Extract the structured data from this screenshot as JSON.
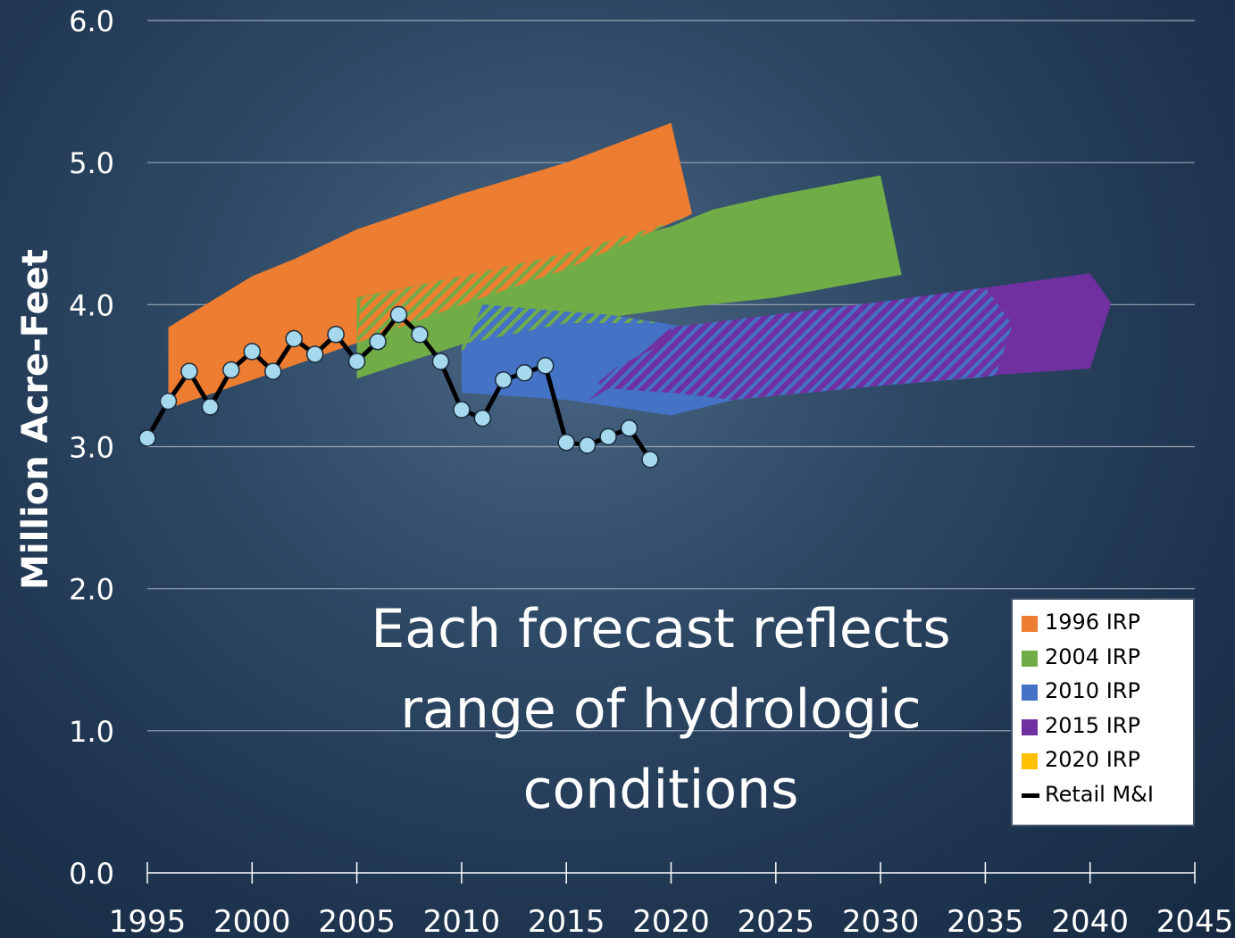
{
  "chart_data": {
    "type": "area",
    "ylabel": "Million Acre-Feet",
    "xlim": [
      1995,
      2045
    ],
    "ylim": [
      0.0,
      6.0
    ],
    "x_ticks": [
      "1995",
      "2000",
      "2005",
      "2010",
      "2015",
      "2020",
      "2025",
      "2030",
      "2035",
      "2040",
      "2045"
    ],
    "y_ticks": [
      "0.0",
      "1.0",
      "2.0",
      "3.0",
      "4.0",
      "5.0",
      "6.0"
    ],
    "grid": true,
    "annotation": "Each forecast reflects range of hydrologic conditions",
    "legend_position": "bottom-right",
    "bands": [
      {
        "name": "1996 IRP",
        "color": "#ed7d31",
        "upper": [
          [
            1996,
            3.84
          ],
          [
            2000,
            4.2
          ],
          [
            2002,
            4.32
          ],
          [
            2005,
            4.53
          ],
          [
            2010,
            4.78
          ],
          [
            2015,
            5.0
          ],
          [
            2020,
            5.28
          ],
          [
            2021,
            4.64
          ]
        ],
        "lower": [
          [
            1996,
            3.27
          ],
          [
            2000,
            3.47
          ],
          [
            2005,
            3.73
          ],
          [
            2010,
            4.0
          ],
          [
            2015,
            4.25
          ],
          [
            2021,
            4.64
          ]
        ]
      },
      {
        "name": "2004 IRP",
        "color": "#70ad47",
        "upper": [
          [
            2005,
            4.05
          ],
          [
            2010,
            4.2
          ],
          [
            2015,
            4.36
          ],
          [
            2020,
            4.55
          ],
          [
            2022,
            4.67
          ],
          [
            2025,
            4.77
          ],
          [
            2030,
            4.91
          ],
          [
            2031,
            4.21
          ]
        ],
        "lower": [
          [
            2005,
            3.48
          ],
          [
            2010,
            3.72
          ],
          [
            2015,
            3.87
          ],
          [
            2020,
            3.97
          ],
          [
            2025,
            4.05
          ],
          [
            2031,
            4.21
          ]
        ]
      },
      {
        "name": "2010 IRP",
        "color": "#4472c4",
        "upper": [
          [
            2010,
            3.63
          ],
          [
            2011,
            4.0
          ],
          [
            2015,
            3.95
          ],
          [
            2017,
            3.93
          ],
          [
            2020,
            3.86
          ]
        ],
        "lower": [
          [
            2010,
            3.38
          ],
          [
            2015,
            3.33
          ],
          [
            2020,
            3.22
          ],
          [
            2023,
            3.33
          ],
          [
            2030,
            3.43
          ],
          [
            2035,
            3.49
          ]
        ]
      },
      {
        "name": "2015 IRP",
        "color": "#7030a0",
        "upper": [
          [
            2020,
            3.84
          ],
          [
            2025,
            3.93
          ],
          [
            2030,
            4.02
          ],
          [
            2035,
            4.12
          ],
          [
            2040,
            4.22
          ],
          [
            2041,
            4.01
          ]
        ],
        "lower": [
          [
            2016,
            3.32
          ],
          [
            2017,
            3.41
          ],
          [
            2020,
            3.38
          ],
          [
            2025,
            3.47
          ],
          [
            2030,
            3.51
          ],
          [
            2035,
            3.5
          ],
          [
            2040,
            3.55
          ],
          [
            2041,
            4.01
          ]
        ]
      },
      {
        "name": "2020 IRP",
        "color": "#ffc000",
        "upper": [],
        "lower": []
      }
    ],
    "series": [
      {
        "name": "Retail M&I",
        "color": "#000000",
        "marker_color": "#a6d9ee",
        "x": [
          1995,
          1996,
          1997,
          1998,
          1999,
          2000,
          2001,
          2002,
          2003,
          2004,
          2005,
          2006,
          2007,
          2008,
          2009,
          2010,
          2011,
          2012,
          2013,
          2014,
          2015,
          2016,
          2017,
          2018,
          2019
        ],
        "y": [
          3.06,
          3.32,
          3.53,
          3.28,
          3.54,
          3.67,
          3.53,
          3.76,
          3.65,
          3.79,
          3.6,
          3.74,
          3.93,
          3.79,
          3.6,
          3.26,
          3.2,
          3.47,
          3.52,
          3.57,
          3.03,
          3.01,
          3.07,
          3.13,
          2.91
        ]
      }
    ],
    "legend": [
      {
        "label": "1996 IRP",
        "color": "#ed7d31",
        "kind": "box"
      },
      {
        "label": "2004 IRP",
        "color": "#70ad47",
        "kind": "box"
      },
      {
        "label": "2010 IRP",
        "color": "#4472c4",
        "kind": "box"
      },
      {
        "label": "2015 IRP",
        "color": "#7030a0",
        "kind": "box"
      },
      {
        "label": "2020 IRP",
        "color": "#ffc000",
        "kind": "box"
      },
      {
        "label": "Retail M&I",
        "color": "#000000",
        "kind": "line"
      }
    ]
  }
}
